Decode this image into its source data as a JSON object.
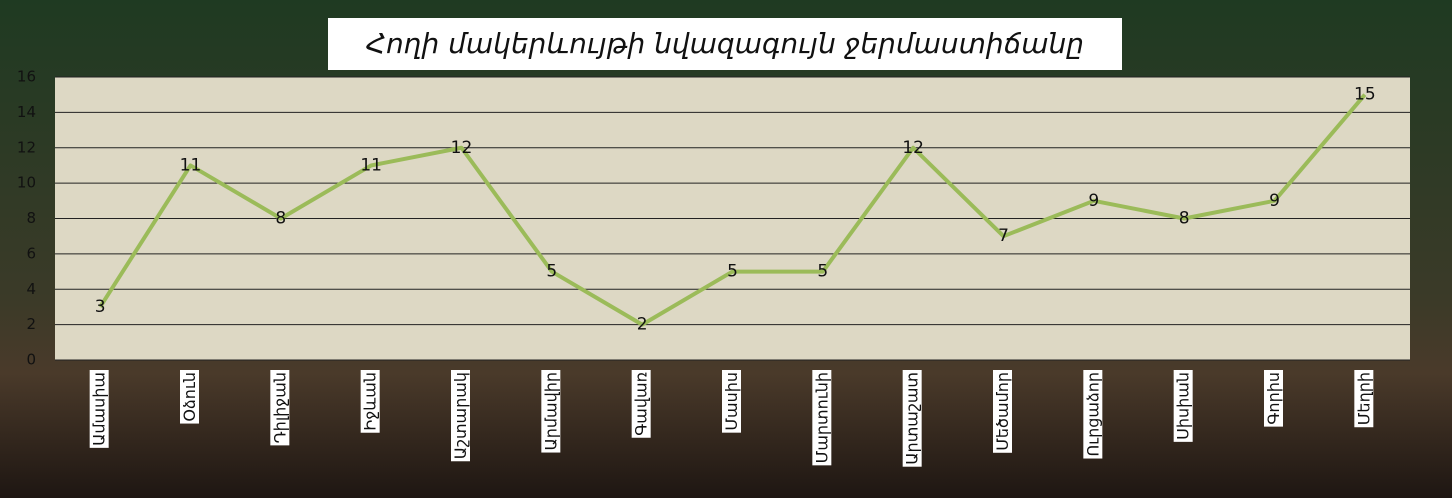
{
  "chart_data": {
    "type": "line",
    "title": "Հողի մակերևույթի նվազագույն ջերմաստիճանը",
    "categories": [
      "Ամասիա",
      "Օձուն",
      "Դիլիջան",
      "Իջևան",
      "Աշտարակ",
      "Արմավիր",
      "Գավառ",
      "Մասիս",
      "Մարտունի",
      "Արտաշատ",
      "Մեծամոր",
      "Ուրցաձոր",
      "Սիսիան",
      "Գորիս",
      "Մեղրի"
    ],
    "values": [
      3,
      11,
      8,
      11,
      12,
      5,
      2,
      5,
      5,
      12,
      7,
      9,
      8,
      9,
      15
    ],
    "color": "#9bbb59",
    "ylim": [
      0,
      16
    ],
    "yticks": [
      0,
      2,
      4,
      6,
      8,
      10,
      12,
      14,
      16
    ],
    "grid": true
  }
}
